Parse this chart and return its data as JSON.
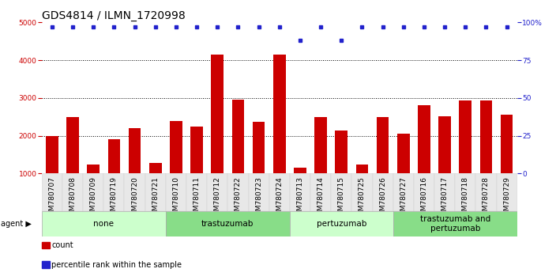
{
  "title": "GDS4814 / ILMN_1720998",
  "samples": [
    "GSM780707",
    "GSM780708",
    "GSM780709",
    "GSM780719",
    "GSM780720",
    "GSM780721",
    "GSM780710",
    "GSM780711",
    "GSM780712",
    "GSM780722",
    "GSM780723",
    "GSM780724",
    "GSM780713",
    "GSM780714",
    "GSM780715",
    "GSM780725",
    "GSM780726",
    "GSM780727",
    "GSM780716",
    "GSM780717",
    "GSM780718",
    "GSM780728",
    "GSM780729"
  ],
  "counts": [
    2000,
    2500,
    1250,
    1900,
    2200,
    1280,
    2400,
    2250,
    4150,
    2950,
    2380,
    4150,
    1150,
    2500,
    2150,
    1250,
    2500,
    2050,
    2800,
    2520,
    2940,
    2940,
    2560
  ],
  "percentile": [
    97,
    97,
    97,
    97,
    97,
    97,
    97,
    97,
    97,
    97,
    97,
    97,
    88,
    97,
    88,
    97,
    97,
    97,
    97,
    97,
    97,
    97,
    97
  ],
  "bar_color": "#cc0000",
  "dot_color": "#2222cc",
  "groups": [
    {
      "label": "none",
      "start": 0,
      "end": 6,
      "color": "#ccffcc"
    },
    {
      "label": "trastuzumab",
      "start": 6,
      "end": 12,
      "color": "#88dd88"
    },
    {
      "label": "pertuzumab",
      "start": 12,
      "end": 17,
      "color": "#ccffcc"
    },
    {
      "label": "trastuzumab and\npertuzumab",
      "start": 17,
      "end": 23,
      "color": "#88dd88"
    }
  ],
  "ylim_left": [
    1000,
    5000
  ],
  "ylim_right": [
    0,
    100
  ],
  "yticks_left": [
    1000,
    2000,
    3000,
    4000,
    5000
  ],
  "yticks_right": [
    0,
    25,
    50,
    75,
    100
  ],
  "agent_label": "agent",
  "legend_count_label": "count",
  "legend_pct_label": "percentile rank within the sample",
  "title_fontsize": 10,
  "tick_fontsize": 6.5,
  "group_fontsize": 7.5
}
